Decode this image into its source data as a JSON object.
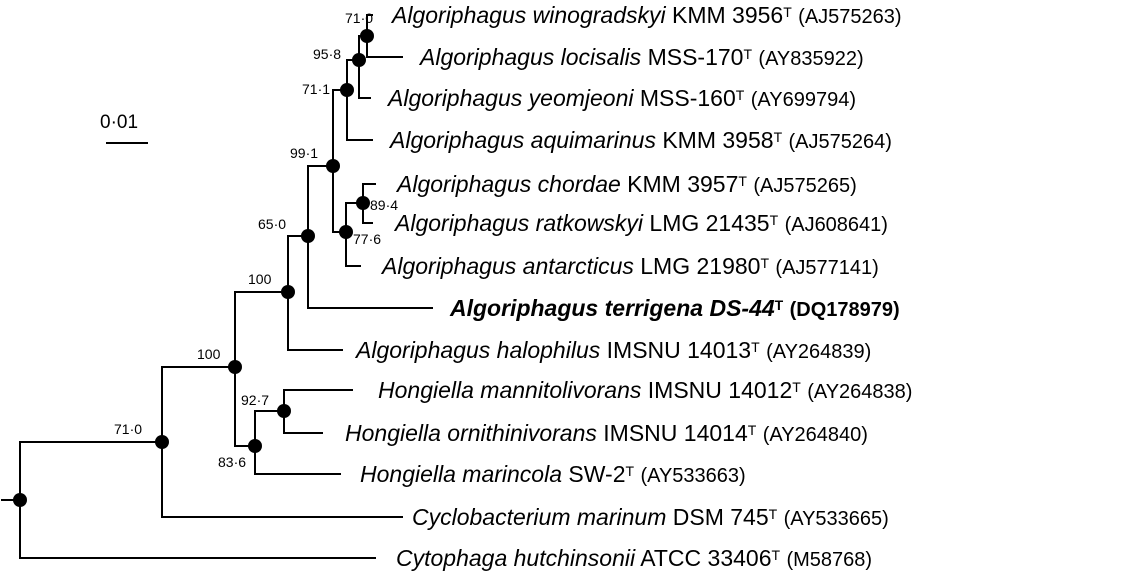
{
  "scale_bar": {
    "label": "0·01"
  },
  "taxa": [
    {
      "genus": "Algoriphagus",
      "species": "winogradskyi",
      "strain": "KMM 3956",
      "type_mark": "T",
      "accession": "(AJ575263)",
      "bold": false
    },
    {
      "genus": "Algoriphagus",
      "species": "locisalis",
      "strain": "MSS-170",
      "type_mark": "T",
      "accession": "(AY835922)",
      "bold": false
    },
    {
      "genus": "Algoriphagus",
      "species": "yeomjeoni",
      "strain": "MSS-160",
      "type_mark": "T",
      "accession": "(AY699794)",
      "bold": false
    },
    {
      "genus": "Algoriphagus",
      "species": "aquimarinus",
      "strain": "KMM 3958",
      "type_mark": "T",
      "accession": "(AJ575264)",
      "bold": false
    },
    {
      "genus": "Algoriphagus",
      "species": "chordae",
      "strain": "KMM 3957",
      "type_mark": "T",
      "accession": "(AJ575265)",
      "bold": false
    },
    {
      "genus": "Algoriphagus",
      "species": "ratkowskyi",
      "strain": "LMG 21435",
      "type_mark": "T",
      "accession": "(AJ608641)",
      "bold": false
    },
    {
      "genus": "Algoriphagus",
      "species": "antarcticus",
      "strain": "LMG 21980",
      "type_mark": "T",
      "accession": "(AJ577141)",
      "bold": false
    },
    {
      "genus": "Algoriphagus",
      "species": "terrigena",
      "strain": "DS-44",
      "type_mark": "T",
      "accession": "(DQ178979)",
      "bold": true
    },
    {
      "genus": "Algoriphagus",
      "species": "halophilus",
      "strain": "IMSNU 14013",
      "type_mark": "T",
      "accession": "(AY264839)",
      "bold": false
    },
    {
      "genus": "Hongiella",
      "species": "mannitolivorans",
      "strain": "IMSNU 14012",
      "type_mark": "T",
      "accession": "(AY264838)",
      "bold": false
    },
    {
      "genus": "Hongiella",
      "species": "ornithinivorans",
      "strain": "IMSNU 14014",
      "type_mark": "T",
      "accession": "(AY264840)",
      "bold": false
    },
    {
      "genus": "Hongiella",
      "species": "marincola",
      "strain": "SW-2",
      "type_mark": "T",
      "accession": "(AY533663)",
      "bold": false
    },
    {
      "genus": "Cyclobacterium",
      "species": "marinum",
      "strain": "DSM 745",
      "type_mark": "T",
      "accession": "(AY533665)",
      "bold": false
    },
    {
      "genus": "Cytophaga",
      "species": "hutchinsonii",
      "strain": "ATCC 33406",
      "type_mark": "T",
      "accession": "(M58768)",
      "bold": false
    }
  ],
  "bootstrap_values": [
    "71·0",
    "95·8",
    "71·1",
    "99·1",
    "89·4",
    "77·6",
    "65·0",
    "100",
    "100",
    "92·7",
    "83·6",
    "71·0"
  ]
}
